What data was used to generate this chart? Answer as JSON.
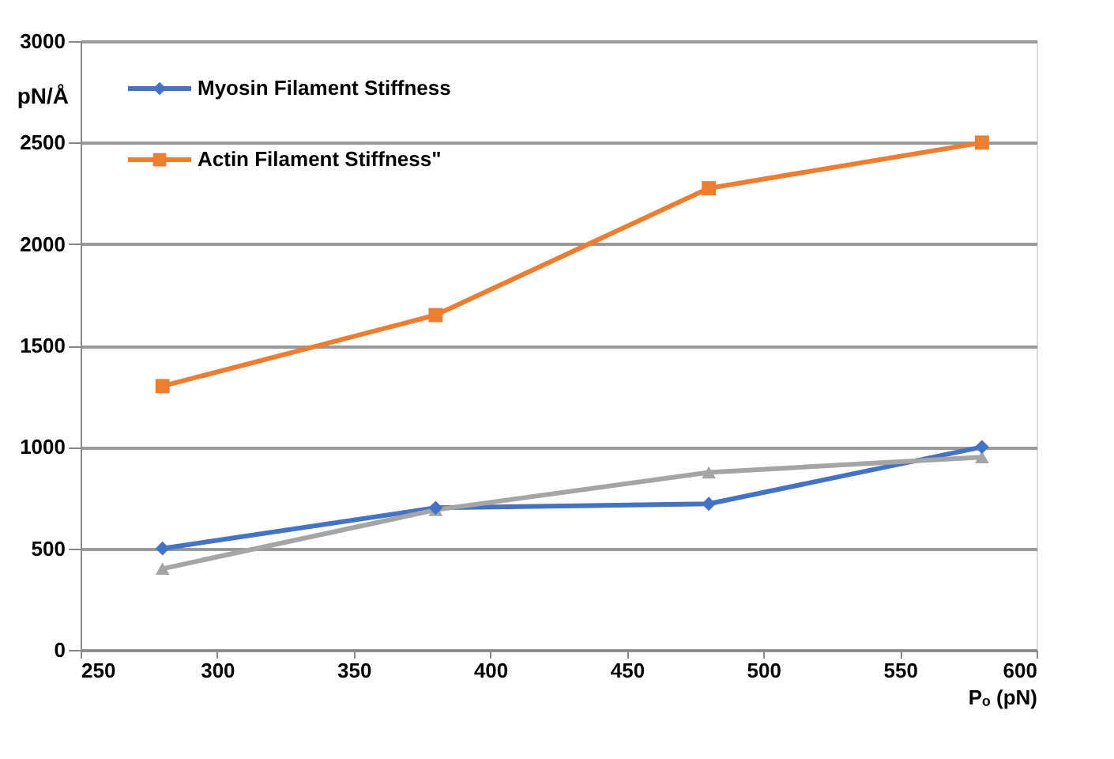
{
  "chart_data": {
    "type": "line",
    "xlabel": "Pₒ (pN)",
    "ylabel": "pN/Å",
    "x": [
      280,
      380,
      480,
      580
    ],
    "series": [
      {
        "name": "Myosin Filament Stiffness",
        "color": "#4472c4",
        "marker": "diamond",
        "values": [
          500,
          700,
          720,
          1000
        ]
      },
      {
        "name": "Actin Filament Stiffness\"",
        "color": "#ed7d31",
        "marker": "square",
        "values": [
          1300,
          1650,
          2275,
          2500
        ]
      },
      {
        "color": "#a5a5a5",
        "marker": "triangle",
        "values": [
          400,
          690,
          875,
          950
        ]
      }
    ],
    "xlim": [
      250,
      600
    ],
    "xticks": [
      250,
      300,
      350,
      400,
      450,
      500,
      550,
      600
    ],
    "ylim": [
      0,
      3000
    ],
    "yticks": [
      0,
      500,
      1000,
      1500,
      2000,
      2500,
      3000
    ],
    "grid": "y",
    "legend": "top left",
    "line_style": "solid"
  }
}
